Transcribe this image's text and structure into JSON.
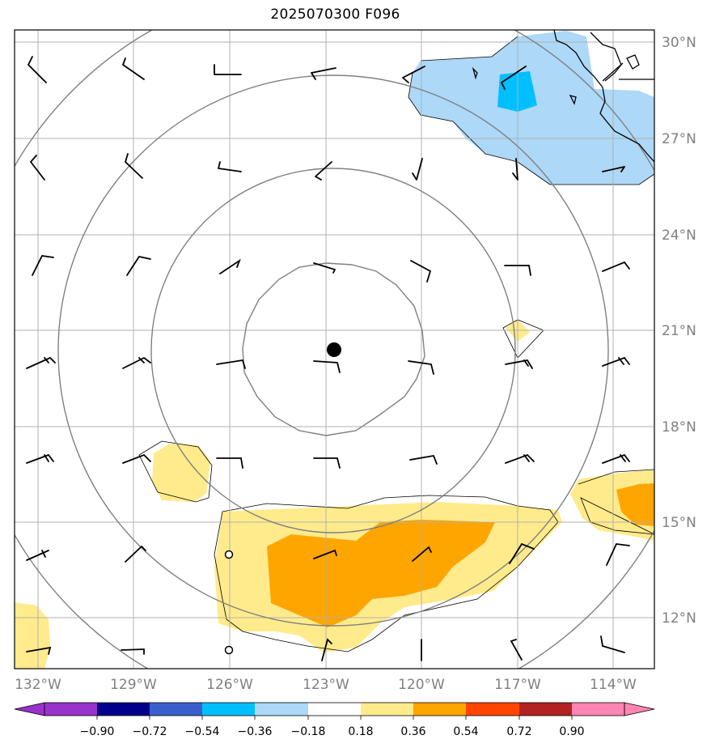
{
  "title": "2025070300 F096",
  "map": {
    "lon_labels": [
      "132°W",
      "129°W",
      "126°W",
      "123°W",
      "120°W",
      "117°W",
      "114°W"
    ],
    "lat_labels": [
      "30°N",
      "27°N",
      "24°N",
      "21°N",
      "18°N",
      "15°N",
      "12°N"
    ],
    "center_marker": "storm-center"
  },
  "colorbar": {
    "labels": [
      "−0.90",
      "−0.72",
      "−0.54",
      "−0.36",
      "−0.18",
      "0.18",
      "0.36",
      "0.54",
      "0.72",
      "0.90"
    ],
    "colors": [
      "#9932cc",
      "#00008b",
      "#3a5fcd",
      "#00bfff",
      "#add8f7",
      "#ffffff",
      "#ffeb8c",
      "#ffa500",
      "#ff4500",
      "#b22222",
      "#ff85b3"
    ],
    "extend": "both"
  }
}
